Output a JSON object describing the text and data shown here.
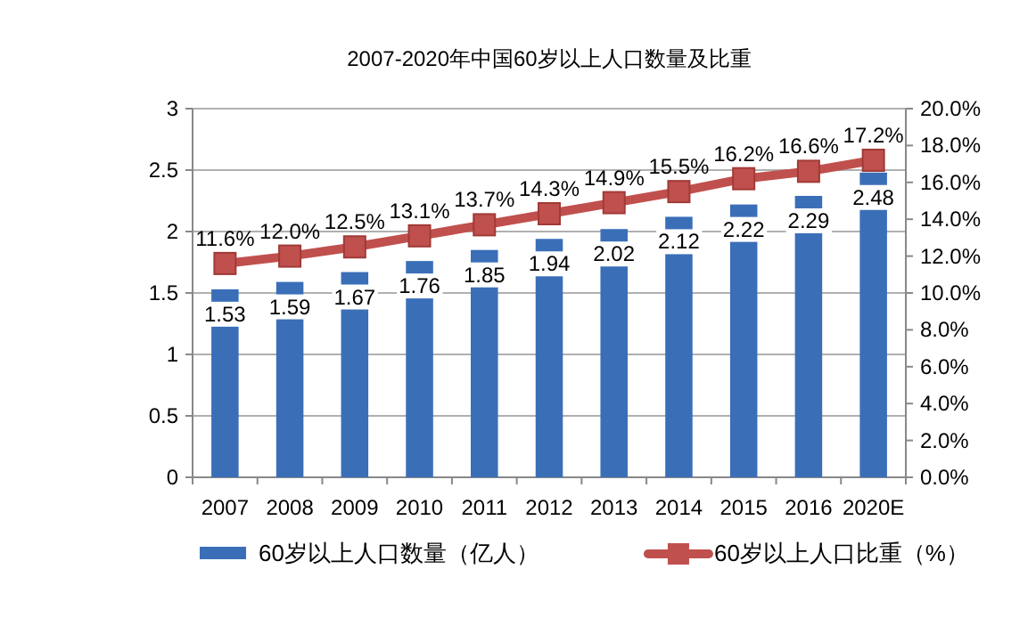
{
  "chart_data": {
    "type": "bar",
    "title": "2007-2020年中国60岁以上人口数量及比重",
    "categories": [
      "2007",
      "2008",
      "2009",
      "2010",
      "2011",
      "2012",
      "2013",
      "2014",
      "2015",
      "2016",
      "2020E"
    ],
    "series": [
      {
        "name": "60岁以上人口数量（亿人）",
        "color": "#3a6fb8",
        "values": [
          1.53,
          1.59,
          1.67,
          1.76,
          1.85,
          1.94,
          2.02,
          2.12,
          2.22,
          2.29,
          2.48
        ],
        "value_labels": [
          "1.53",
          "1.59",
          "1.67",
          "1.76",
          "1.85",
          "1.94",
          "2.02",
          "2.12",
          "2.22",
          "2.29",
          "2.48"
        ]
      },
      {
        "name": "60岁以上人口比重（%）",
        "type": "line",
        "axis": "y2",
        "color": "#c0504d",
        "marker": "square",
        "values": [
          11.6,
          12.0,
          12.5,
          13.1,
          13.7,
          14.3,
          14.9,
          15.5,
          16.2,
          16.6,
          17.2
        ],
        "value_labels": [
          "11.6%",
          "12.0%",
          "12.5%",
          "13.1%",
          "13.7%",
          "14.3%",
          "14.9%",
          "15.5%",
          "16.2%",
          "16.6%",
          "17.2%"
        ]
      }
    ],
    "ylim": [
      0,
      3
    ],
    "yticks": [
      0,
      0.5,
      1,
      1.5,
      2,
      2.5,
      3
    ],
    "y2lim": [
      0,
      20
    ],
    "y2ticks": [
      {
        "value": 0,
        "label": "0.0%"
      },
      {
        "value": 2,
        "label": "2.0%"
      },
      {
        "value": 4,
        "label": "4.0%"
      },
      {
        "value": 6,
        "label": "6.0%"
      },
      {
        "value": 8,
        "label": "8.0%"
      },
      {
        "value": 10,
        "label": "10.0%"
      },
      {
        "value": 12,
        "label": "12.0%"
      },
      {
        "value": 14,
        "label": "14.0%"
      },
      {
        "value": 16,
        "label": "16.0%"
      },
      {
        "value": 18,
        "label": "18.0%"
      },
      {
        "value": 20,
        "label": "20.0%"
      }
    ],
    "grid": "y",
    "legend": "bottom"
  }
}
